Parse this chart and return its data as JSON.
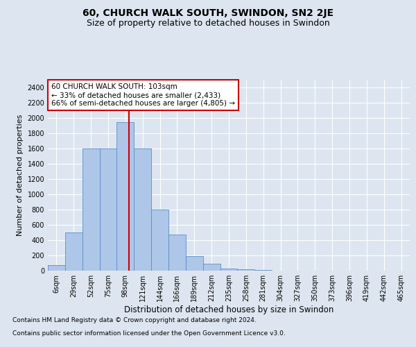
{
  "title": "60, CHURCH WALK SOUTH, SWINDON, SN2 2JE",
  "subtitle": "Size of property relative to detached houses in Swindon",
  "xlabel": "Distribution of detached houses by size in Swindon",
  "ylabel": "Number of detached properties",
  "categories": [
    "6sqm",
    "29sqm",
    "52sqm",
    "75sqm",
    "98sqm",
    "121sqm",
    "144sqm",
    "166sqm",
    "189sqm",
    "212sqm",
    "235sqm",
    "258sqm",
    "281sqm",
    "304sqm",
    "327sqm",
    "350sqm",
    "373sqm",
    "396sqm",
    "419sqm",
    "442sqm",
    "465sqm"
  ],
  "values": [
    75,
    500,
    1600,
    1600,
    1950,
    1600,
    800,
    475,
    195,
    90,
    30,
    20,
    5,
    0,
    0,
    0,
    0,
    0,
    0,
    0,
    0
  ],
  "bar_color": "#aec6e8",
  "bar_edge_color": "#5b8dc8",
  "vline_index": 4.2,
  "vline_color": "#cc0000",
  "annotation_text": "60 CHURCH WALK SOUTH: 103sqm\n← 33% of detached houses are smaller (2,433)\n66% of semi-detached houses are larger (4,805) →",
  "annotation_box_facecolor": "#ffffff",
  "annotation_box_edgecolor": "#cc0000",
  "ylim": [
    0,
    2500
  ],
  "yticks": [
    0,
    200,
    400,
    600,
    800,
    1000,
    1200,
    1400,
    1600,
    1800,
    2000,
    2200,
    2400
  ],
  "footnote1": "Contains HM Land Registry data © Crown copyright and database right 2024.",
  "footnote2": "Contains public sector information licensed under the Open Government Licence v3.0.",
  "bg_color": "#dde6f0",
  "title_fontsize": 10,
  "subtitle_fontsize": 9,
  "xlabel_fontsize": 8.5,
  "ylabel_fontsize": 8,
  "tick_fontsize": 7,
  "annotation_fontsize": 7.5,
  "footnote_fontsize": 6.5
}
